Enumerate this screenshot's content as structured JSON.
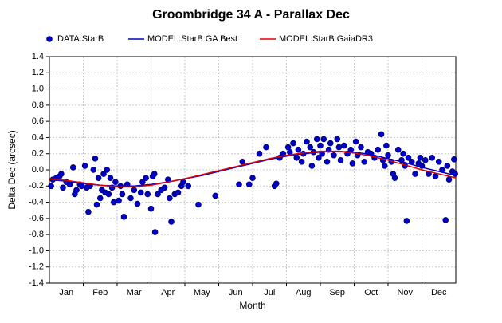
{
  "chart_data": {
    "type": "scatter",
    "title": "Groombridge 34 A - Parallax Dec",
    "x_label": "Month",
    "y_label": "Delta Dec (arcsec)",
    "categories": [
      "Jan",
      "Feb",
      "Mar",
      "Apr",
      "May",
      "Jun",
      "Jul",
      "Aug",
      "Sep",
      "Oct",
      "Nov",
      "Dec"
    ],
    "xlim": [
      0,
      12
    ],
    "xticks": [
      1,
      2,
      3,
      4,
      5,
      6,
      7,
      8,
      9,
      10,
      11
    ],
    "ylim": [
      -1.4,
      1.4
    ],
    "yticks": [
      1.4,
      1.2,
      {
        "value": 1,
        "label": "1.0"
      },
      0.8,
      0.6,
      0.4,
      0.2,
      {
        "value": 0,
        "label": "0.0"
      },
      -0.2,
      -0.4,
      -0.6,
      -0.8,
      {
        "value": -1,
        "label": "-1.0"
      },
      -1.2,
      -1.4
    ],
    "grid": true,
    "series": [
      {
        "name": "DATA:StarB",
        "type": "scatter",
        "color": "#0000cc",
        "x": [
          0.05,
          0.1,
          0.2,
          0.3,
          0.35,
          0.4,
          0.5,
          0.6,
          0.7,
          0.75,
          0.8,
          0.9,
          0.95,
          1.05,
          1.1,
          1.15,
          1.2,
          1.3,
          1.35,
          1.4,
          1.45,
          1.5,
          1.55,
          1.6,
          1.65,
          1.7,
          1.75,
          1.8,
          1.85,
          1.9,
          1.95,
          2.05,
          2.1,
          2.15,
          2.2,
          2.3,
          2.4,
          2.5,
          2.6,
          2.7,
          2.75,
          2.85,
          2.9,
          3.0,
          3.05,
          3.1,
          3.12,
          3.2,
          3.3,
          3.4,
          3.5,
          3.55,
          3.6,
          3.7,
          3.8,
          3.9,
          3.95,
          4.1,
          4.4,
          4.9,
          5.6,
          5.7,
          5.9,
          6.0,
          6.2,
          6.4,
          6.65,
          6.7,
          6.8,
          6.9,
          7.05,
          7.1,
          7.2,
          7.3,
          7.35,
          7.45,
          7.5,
          7.6,
          7.7,
          7.75,
          7.8,
          7.9,
          7.95,
          8.0,
          8.05,
          8.1,
          8.2,
          8.25,
          8.3,
          8.4,
          8.5,
          8.55,
          8.6,
          8.7,
          8.8,
          8.9,
          8.95,
          9.05,
          9.1,
          9.2,
          9.3,
          9.4,
          9.5,
          9.6,
          9.7,
          9.8,
          9.85,
          9.9,
          9.95,
          10.0,
          10.1,
          10.15,
          10.2,
          10.3,
          10.4,
          10.45,
          10.5,
          10.55,
          10.6,
          10.7,
          10.8,
          10.9,
          10.95,
          11.0,
          11.1,
          11.2,
          11.3,
          11.4,
          11.5,
          11.6,
          11.7,
          11.75,
          11.8,
          11.9,
          11.95,
          11.98
        ],
        "values": [
          -0.2,
          -0.12,
          -0.1,
          -0.08,
          -0.05,
          -0.22,
          -0.15,
          -0.18,
          0.03,
          -0.3,
          -0.25,
          -0.18,
          -0.2,
          0.05,
          -0.22,
          -0.52,
          -0.2,
          0.0,
          0.14,
          -0.43,
          -0.1,
          -0.35,
          -0.25,
          -0.05,
          -0.28,
          0.0,
          -0.3,
          -0.1,
          -0.22,
          -0.4,
          -0.15,
          -0.38,
          -0.2,
          -0.3,
          -0.58,
          -0.18,
          -0.35,
          -0.25,
          -0.42,
          -0.28,
          -0.15,
          -0.1,
          -0.3,
          -0.48,
          -0.08,
          -0.05,
          -0.77,
          -0.3,
          -0.25,
          -0.22,
          -0.12,
          -0.35,
          -0.64,
          -0.3,
          -0.28,
          -0.2,
          -0.15,
          -0.2,
          -0.43,
          -0.32,
          -0.18,
          0.1,
          -0.18,
          -0.1,
          0.2,
          0.28,
          -0.2,
          -0.17,
          0.15,
          0.2,
          0.28,
          0.22,
          0.33,
          0.15,
          0.25,
          0.1,
          0.2,
          0.35,
          0.28,
          0.05,
          0.22,
          0.38,
          0.15,
          0.3,
          0.2,
          0.38,
          0.1,
          0.25,
          0.33,
          0.18,
          0.38,
          0.28,
          0.12,
          0.3,
          0.2,
          0.25,
          0.08,
          0.35,
          0.18,
          0.28,
          0.1,
          0.22,
          0.2,
          0.15,
          0.25,
          0.44,
          0.12,
          0.05,
          0.3,
          0.18,
          0.1,
          -0.05,
          -0.1,
          0.25,
          0.12,
          0.2,
          0.05,
          -0.63,
          0.15,
          0.1,
          -0.05,
          0.08,
          0.15,
          0.05,
          0.12,
          -0.05,
          0.15,
          -0.08,
          0.1,
          0.0,
          -0.62,
          0.05,
          -0.12,
          -0.02,
          0.13,
          -0.05
        ]
      },
      {
        "name": "MODEL:StarB:GA Best",
        "type": "line",
        "color": "#0000cc",
        "x": [
          0,
          0.5,
          1,
          1.5,
          2,
          2.5,
          3,
          3.5,
          4,
          4.5,
          5,
          5.5,
          6,
          6.5,
          7,
          7.5,
          8,
          8.5,
          9,
          9.5,
          10,
          10.5,
          11,
          11.5,
          12
        ],
        "values": [
          -0.12,
          -0.14,
          -0.17,
          -0.19,
          -0.2,
          -0.2,
          -0.18,
          -0.15,
          -0.11,
          -0.07,
          -0.02,
          0.03,
          0.08,
          0.13,
          0.17,
          0.2,
          0.22,
          0.23,
          0.22,
          0.19,
          0.14,
          0.09,
          0.03,
          -0.02,
          -0.07
        ]
      },
      {
        "name": "MODEL:StarB:GaiaDR3",
        "type": "line",
        "color": "#dd0000",
        "x": [
          0,
          0.5,
          1,
          1.5,
          2,
          2.5,
          3,
          3.5,
          4,
          4.5,
          5,
          5.5,
          6,
          6.5,
          7,
          7.5,
          8,
          8.5,
          9,
          9.5,
          10,
          10.5,
          11,
          11.5,
          12
        ],
        "values": [
          -0.11,
          -0.13,
          -0.16,
          -0.19,
          -0.21,
          -0.21,
          -0.19,
          -0.15,
          -0.11,
          -0.06,
          -0.01,
          0.04,
          0.09,
          0.14,
          0.18,
          0.21,
          0.23,
          0.23,
          0.21,
          0.17,
          0.12,
          0.06,
          0.0,
          -0.05,
          -0.1
        ]
      }
    ]
  }
}
